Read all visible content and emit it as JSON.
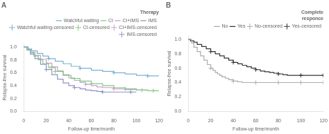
{
  "chart_data": [
    {
      "type": "line",
      "title": "A",
      "legend_title": "Therapy",
      "xlabel": "Follow-up time/month",
      "ylabel": "Relapse-free survival",
      "xlim": [
        0,
        120
      ],
      "ylim": [
        0.0,
        1.05
      ],
      "xticks": [
        0,
        20,
        40,
        60,
        80,
        100,
        120
      ],
      "yticks": [
        {
          "value": 0.0,
          "label": "0.0"
        },
        0.2,
        0.4,
        0.6,
        0.8,
        {
          "value": 1.0,
          "label": "1.0"
        }
      ],
      "grid": false,
      "legend": "upper right",
      "series": [
        {
          "name": "Watchful waiting",
          "type": "step",
          "color": "#7bafd4",
          "line_style": "solid",
          "x": [
            0,
            4,
            7,
            12,
            17,
            22,
            28,
            35,
            42,
            50,
            60,
            70,
            80,
            90,
            100,
            110,
            120
          ],
          "values": [
            1.0,
            0.97,
            0.94,
            0.9,
            0.86,
            0.82,
            0.78,
            0.74,
            0.7,
            0.67,
            0.64,
            0.62,
            0.6,
            0.58,
            0.56,
            0.55,
            0.55
          ]
        },
        {
          "name": "CI",
          "type": "step",
          "color": "#82c882",
          "line_style": "solid",
          "x": [
            0,
            3,
            6,
            9,
            13,
            17,
            22,
            28,
            35,
            42,
            50,
            60,
            70,
            80,
            90,
            100,
            110,
            120
          ],
          "values": [
            1.0,
            0.96,
            0.91,
            0.86,
            0.8,
            0.74,
            0.68,
            0.62,
            0.56,
            0.51,
            0.47,
            0.43,
            0.4,
            0.37,
            0.35,
            0.33,
            0.32,
            0.32
          ]
        },
        {
          "name": "CI+IMS",
          "type": "step",
          "color": "#c8a0c8",
          "line_style": "solid",
          "x": [
            0,
            3,
            6,
            10,
            15,
            20,
            25,
            30,
            35,
            40,
            45,
            50,
            55,
            60,
            65,
            70,
            80,
            90,
            100,
            110
          ],
          "values": [
            1.0,
            0.96,
            0.92,
            0.87,
            0.81,
            0.75,
            0.69,
            0.63,
            0.57,
            0.52,
            0.48,
            0.45,
            0.42,
            0.4,
            0.38,
            0.37,
            0.35,
            0.34,
            0.33,
            0.33
          ]
        },
        {
          "name": "IMS",
          "type": "step",
          "color": "#9090c8",
          "line_style": "solid",
          "x": [
            0,
            3,
            6,
            10,
            15,
            20,
            25,
            30,
            35,
            40,
            45,
            50,
            55,
            60,
            65,
            70,
            80,
            90,
            100
          ],
          "values": [
            1.0,
            0.95,
            0.89,
            0.82,
            0.73,
            0.65,
            0.57,
            0.5,
            0.44,
            0.4,
            0.37,
            0.35,
            0.33,
            0.32,
            0.31,
            0.3,
            0.3,
            0.3,
            0.3
          ]
        },
        {
          "name": "Watchful waiting-censored",
          "type": "scatter",
          "marker": "+",
          "color": "#7bafd4",
          "x": [
            22,
            50,
            80,
            110
          ],
          "values": [
            0.82,
            0.67,
            0.6,
            0.55
          ]
        },
        {
          "name": "CI-censored",
          "type": "scatter",
          "marker": "+",
          "color": "#82c882",
          "x": [
            28,
            60,
            90,
            115
          ],
          "values": [
            0.62,
            0.43,
            0.35,
            0.32
          ]
        },
        {
          "name": "CI+IMS-censored",
          "type": "scatter",
          "marker": "+",
          "color": "#c8a0c8",
          "x": [
            25,
            55,
            80,
            105
          ],
          "values": [
            0.69,
            0.42,
            0.35,
            0.33
          ]
        },
        {
          "name": "IMS-censored",
          "type": "scatter",
          "marker": "+",
          "color": "#9090c8",
          "x": [
            20,
            45,
            70,
            95
          ],
          "values": [
            0.65,
            0.37,
            0.3,
            0.3
          ]
        }
      ]
    },
    {
      "type": "line",
      "title": "B",
      "legend_title": "Complete\nresponce",
      "xlabel": "Follow-up time/month",
      "ylabel": "Relapse-free survival",
      "xlim": [
        0,
        120
      ],
      "ylim": [
        0.0,
        1.05
      ],
      "xticks": [
        0,
        20,
        40,
        60,
        80,
        100,
        120
      ],
      "yticks": [
        {
          "value": 0.0,
          "label": "0.0"
        },
        0.2,
        0.4,
        0.6,
        0.8,
        {
          "value": 1.0,
          "label": "1.0"
        }
      ],
      "grid": false,
      "legend": "upper right",
      "series": [
        {
          "name": "No",
          "type": "step",
          "color": "#aaaaaa",
          "line_style": "solid",
          "x": [
            0,
            3,
            5,
            8,
            11,
            14,
            17,
            20,
            22,
            24,
            26,
            28,
            30,
            33,
            36,
            40,
            44,
            48,
            52,
            56,
            60,
            64,
            68,
            72,
            76,
            80,
            84,
            88,
            92,
            96,
            100,
            104,
            108,
            112,
            116,
            120
          ],
          "values": [
            1.0,
            0.95,
            0.89,
            0.83,
            0.77,
            0.71,
            0.65,
            0.6,
            0.57,
            0.54,
            0.52,
            0.5,
            0.48,
            0.46,
            0.44,
            0.42,
            0.41,
            0.4,
            0.4,
            0.4,
            0.4,
            0.4,
            0.4,
            0.4,
            0.4,
            0.4,
            0.4,
            0.4,
            0.4,
            0.4,
            0.4,
            0.4,
            0.4,
            0.4,
            0.4,
            0.4
          ]
        },
        {
          "name": "Yes",
          "type": "step",
          "color": "#333333",
          "line_style": "solid",
          "x": [
            0,
            2,
            5,
            8,
            12,
            16,
            20,
            24,
            28,
            32,
            36,
            40,
            44,
            48,
            52,
            56,
            60,
            64,
            68,
            72,
            76,
            80,
            84,
            88,
            92,
            96,
            100,
            104,
            108,
            112,
            116,
            120
          ],
          "values": [
            1.0,
            0.98,
            0.96,
            0.93,
            0.9,
            0.87,
            0.83,
            0.8,
            0.77,
            0.74,
            0.71,
            0.68,
            0.66,
            0.64,
            0.62,
            0.6,
            0.58,
            0.56,
            0.55,
            0.54,
            0.53,
            0.52,
            0.51,
            0.5,
            0.5,
            0.5,
            0.5,
            0.5,
            0.5,
            0.5,
            0.5,
            0.5
          ]
        },
        {
          "name": "No-censored",
          "type": "scatter",
          "marker": "+",
          "color": "#aaaaaa",
          "x": [
            20,
            40,
            60,
            80,
            100,
            120
          ],
          "values": [
            0.6,
            0.42,
            0.4,
            0.4,
            0.4,
            0.4
          ]
        },
        {
          "name": "Yes-censored",
          "type": "scatter",
          "marker": "+",
          "color": "#333333",
          "x": [
            20,
            40,
            60,
            80,
            100,
            120
          ],
          "values": [
            0.83,
            0.68,
            0.58,
            0.52,
            0.5,
            0.5
          ]
        }
      ]
    }
  ]
}
